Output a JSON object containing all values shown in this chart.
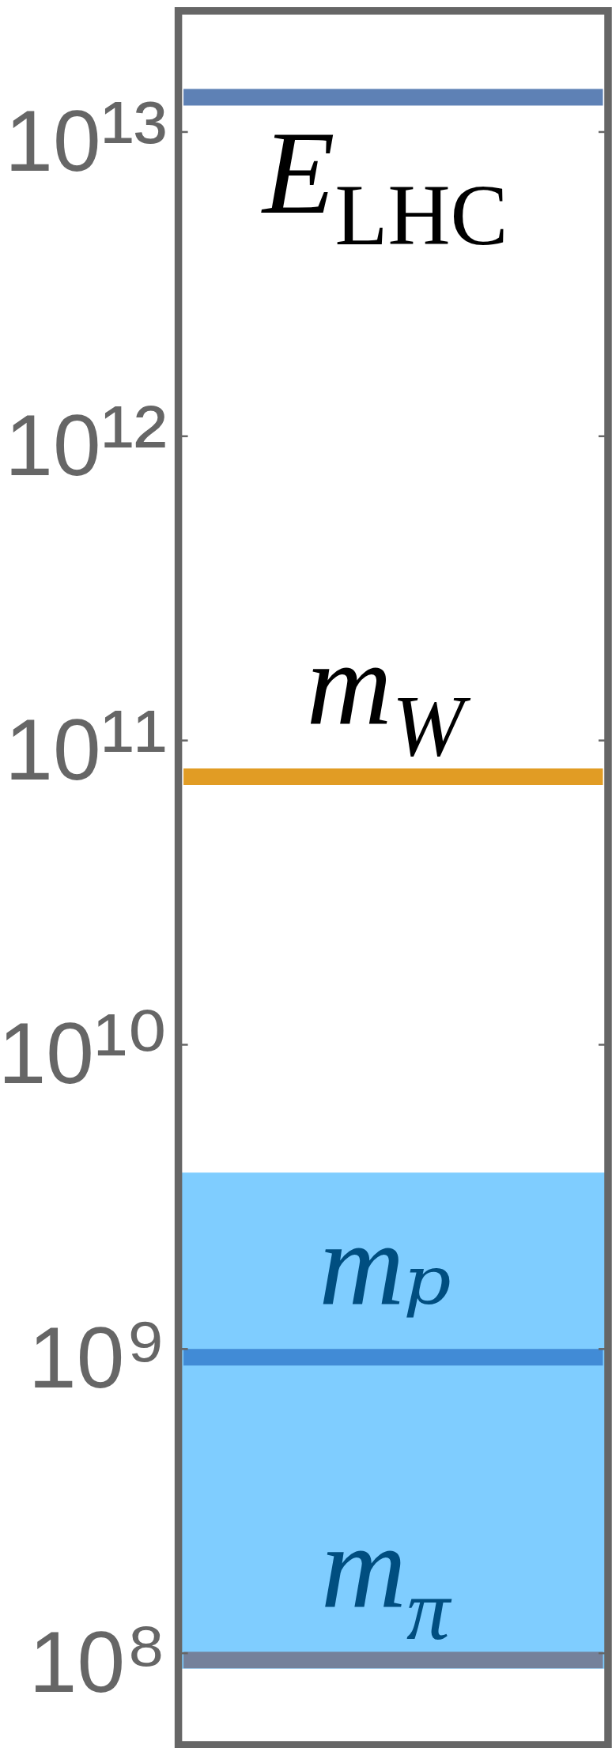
{
  "chart_data": {
    "type": "line",
    "categories": [
      null,
      null,
      null,
      null,
      null,
      null,
      null,
      null,
      null,
      null,
      null,
      null,
      null,
      null,
      null,
      null
    ],
    "series": [
      {
        "name": "E$_{LHC}$",
        "color": "#5e81b5",
        "values": [
          13000000000000.0,
          13000000000000.0,
          13000000000000.0,
          13000000000000.0,
          13000000000000.0,
          13000000000000.0,
          13000000000000.0,
          13000000000000.0,
          13000000000000.0,
          13000000000000.0,
          13000000000000.0,
          13000000000000.0,
          13000000000000.0,
          13000000000000.0,
          13000000000000.0,
          13000000000000.0
        ]
      },
      {
        "name": "m$_{W}$",
        "color": "#e19c24",
        "values": [
          76000000000.0,
          76000000000.0,
          76000000000.0,
          76000000000.0,
          76000000000.0,
          76000000000.0,
          76000000000.0,
          76000000000.0,
          76000000000.0,
          76000000000.0,
          76000000000.0,
          76000000000.0,
          76000000000.0,
          76000000000.0,
          76000000000.0,
          76000000000.0
        ]
      },
      {
        "name": "mₚ",
        "color": "#418bd6",
        "values": [
          940000000.0,
          940000000.0,
          940000000.0,
          940000000.0,
          940000000.0,
          940000000.0,
          940000000.0,
          940000000.0,
          940000000.0,
          940000000.0,
          940000000.0,
          940000000.0,
          940000000.0,
          940000000.0,
          940000000.0,
          940000000.0
        ]
      },
      {
        "name": "m$_{π}$",
        "color": "#75819b",
        "values": [
          95000000.0,
          95000000.0,
          95000000.0,
          95000000.0,
          95000000.0,
          95000000.0,
          95000000.0,
          95000000.0,
          95000000.0,
          95000000.0,
          95000000.0,
          95000000.0,
          95000000.0,
          95000000.0,
          95000000.0,
          95000000.0
        ]
      }
    ],
    "bands": [
      {
        "axis": "y",
        "from": 89000000.0,
        "to": 3800000000.0,
        "color": "#7fcdff"
      }
    ],
    "log": true,
    "ylim": [
      50000000.0,
      25000000000000.0
    ],
    "yticks": [
      {
        "value": 100000000.0,
        "label": "10⁸"
      },
      {
        "value": 1000000000.0,
        "label": "10⁹"
      },
      {
        "value": 10000000000.0,
        "label": "10¹⁰"
      },
      {
        "value": 100000000000.0,
        "label": "10¹¹"
      },
      {
        "value": 1000000000000.0,
        "label": "10¹²"
      },
      {
        "value": 10000000000000.0,
        "label": "10¹³"
      }
    ]
  }
}
